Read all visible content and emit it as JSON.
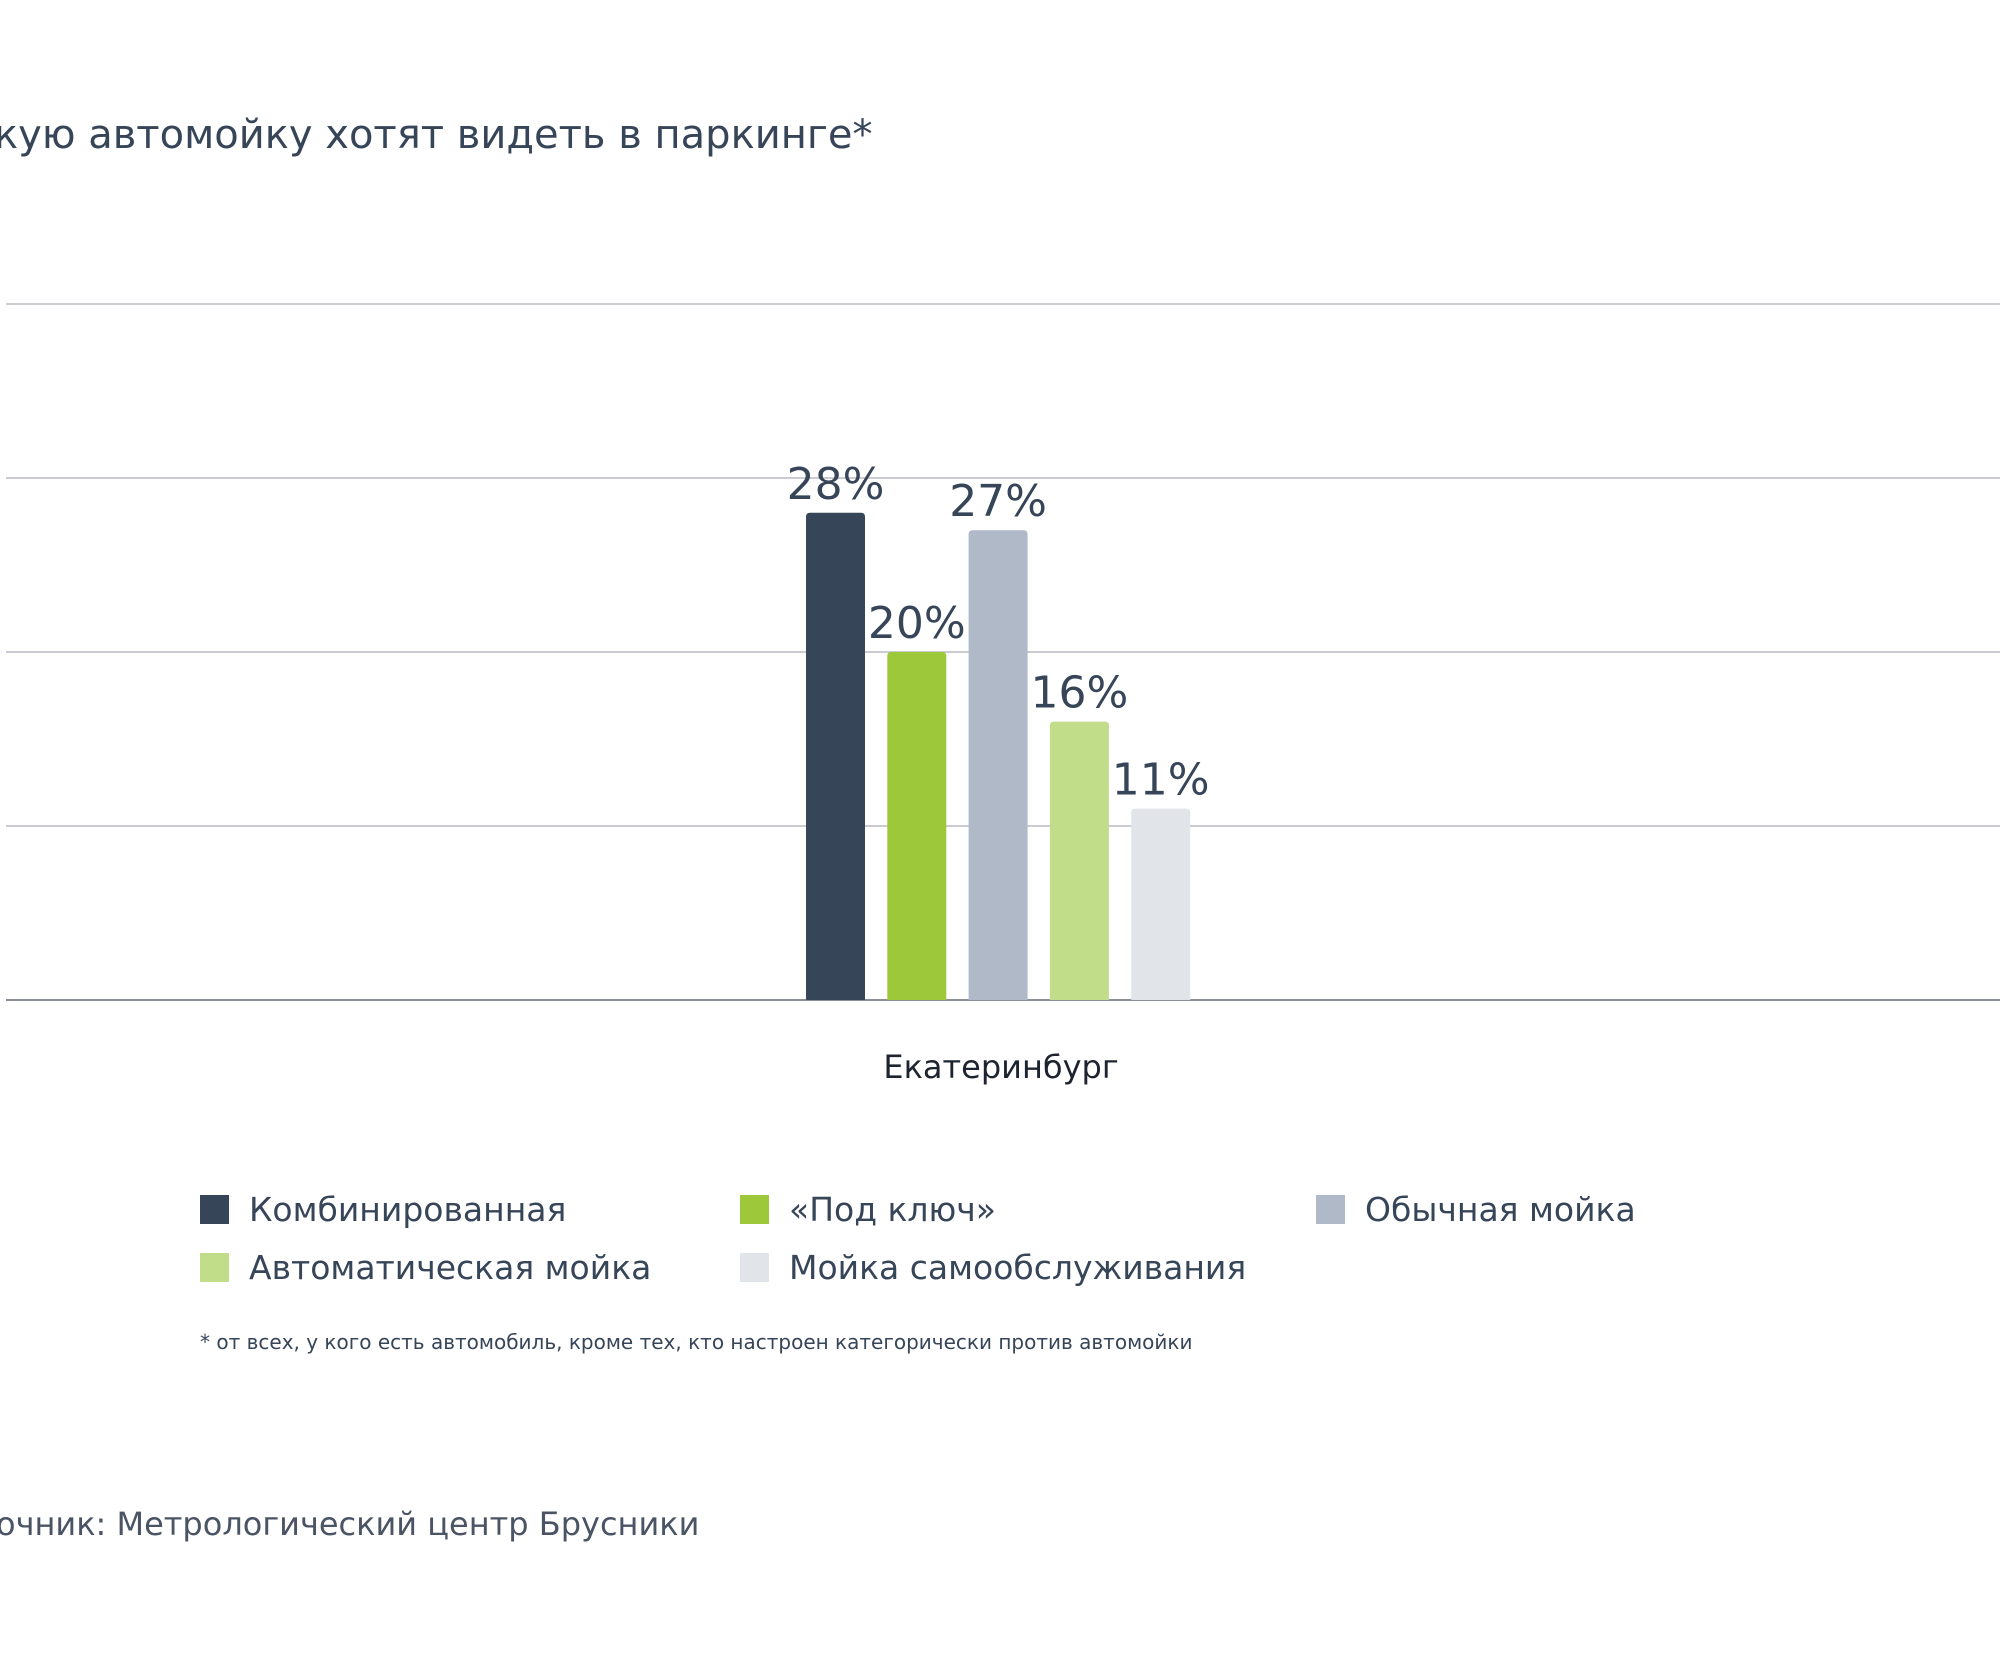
{
  "title": "кую автомойку хотят видеть в паркинге*",
  "chart_data": {
    "type": "bar",
    "categories": [
      "Екатеринбург"
    ],
    "series": [
      {
        "name": "Комбинированная",
        "values": [
          28
        ],
        "label": "28%",
        "color": "#374559"
      },
      {
        "name": "«Под ключ»",
        "values": [
          20
        ],
        "label": "20%",
        "color": "#9dc83a"
      },
      {
        "name": "Обычная мойка",
        "values": [
          27
        ],
        "label": "27%",
        "color": "#b0b9c7"
      },
      {
        "name": "Автоматическая мойка",
        "values": [
          16
        ],
        "label": "16%",
        "color": "#c1dd8a"
      },
      {
        "name": "Мойка самообслуживания",
        "values": [
          11
        ],
        "label": "11%",
        "color": "#e1e4e9"
      }
    ],
    "ylim": [
      0,
      40
    ],
    "yticks": [
      0,
      10,
      20,
      30,
      40
    ],
    "grid": true,
    "legend": "bottom",
    "unit": "%"
  },
  "footnote": "* от всех, у кого есть автомобиль, кроме тех,  кто настроен категорически против автомойки",
  "source": "очник: Метрологический центр Брусники"
}
